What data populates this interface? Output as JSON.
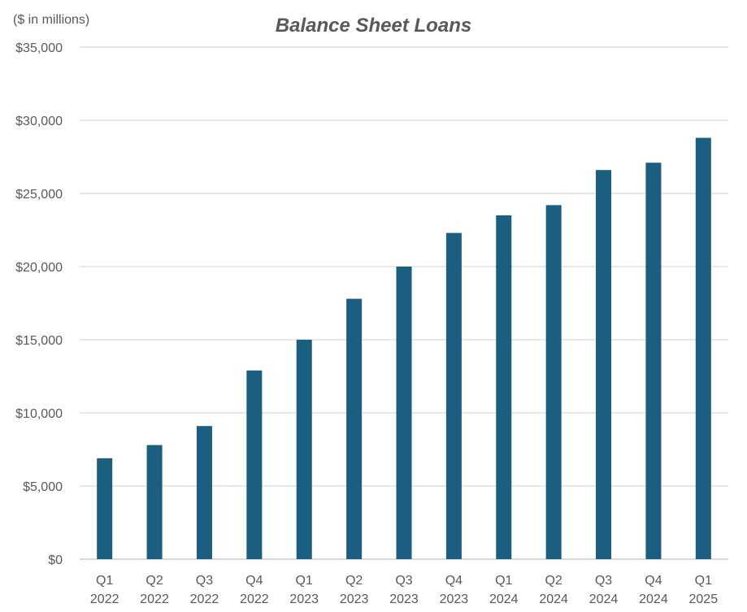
{
  "chart_data": {
    "type": "bar",
    "title": "Balance Sheet Loans",
    "unit_label": "($ in millions)",
    "xlabel": "",
    "ylabel": "",
    "categories": [
      [
        "Q1",
        "2022"
      ],
      [
        "Q2",
        "2022"
      ],
      [
        "Q3",
        "2022"
      ],
      [
        "Q4",
        "2022"
      ],
      [
        "Q1",
        "2023"
      ],
      [
        "Q2",
        "2023"
      ],
      [
        "Q3",
        "2023"
      ],
      [
        "Q4",
        "2023"
      ],
      [
        "Q1",
        "2024"
      ],
      [
        "Q2",
        "2024"
      ],
      [
        "Q3",
        "2024"
      ],
      [
        "Q4",
        "2024"
      ],
      [
        "Q1",
        "2025"
      ]
    ],
    "values": [
      6900,
      7800,
      9100,
      12900,
      15000,
      17800,
      20000,
      22300,
      23500,
      24200,
      26600,
      27100,
      28800
    ],
    "ylim": [
      0,
      35000
    ],
    "yticks": [
      0,
      5000,
      10000,
      15000,
      20000,
      25000,
      30000,
      35000
    ],
    "ytick_labels": [
      "$0",
      "$5,000",
      "$10,000",
      "$15,000",
      "$20,000",
      "$25,000",
      "$30,000",
      "$35,000"
    ],
    "grid": true,
    "legend": "none",
    "bar_color": "#1a5e80",
    "grid_color": "#d9d9d9",
    "text_color": "#595959"
  }
}
